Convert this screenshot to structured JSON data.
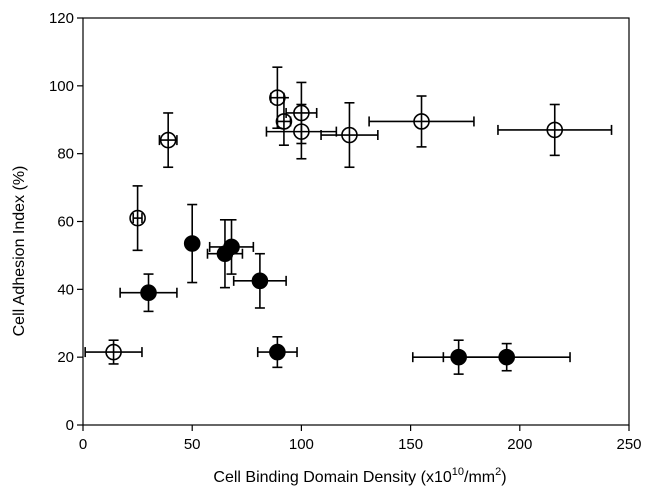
{
  "chart_data": {
    "type": "scatter",
    "title": "",
    "xlabel": "Cell Binding Domain Density (x10",
    "xlabel_sup": "10",
    "xlabel_suffix": "/mm",
    "xlabel_sup2": "2",
    "xlabel_end": ")",
    "ylabel": "Cell Adhesion Index (%)",
    "xlim": [
      0,
      250
    ],
    "ylim": [
      0,
      120
    ],
    "xticks": [
      0,
      50,
      100,
      150,
      200,
      250
    ],
    "yticks": [
      0,
      20,
      40,
      60,
      80,
      100,
      120
    ],
    "grid": false,
    "legend": "none",
    "series": [
      {
        "marker": "open-circle",
        "color": "#000000",
        "points": [
          {
            "x": 14,
            "y": 21.5,
            "xerr": 13,
            "yerr": 3.5
          },
          {
            "x": 25,
            "y": 61,
            "xerr": 2,
            "yerr": 9.5
          },
          {
            "x": 39,
            "y": 84,
            "xerr": 4,
            "yerr": 8
          },
          {
            "x": 89,
            "y": 96.5,
            "xerr": 3,
            "yerr": 9
          },
          {
            "x": 92,
            "y": 89.5,
            "xerr": 3,
            "yerr": 7
          },
          {
            "x": 100,
            "y": 92,
            "xerr": 7,
            "yerr": 9
          },
          {
            "x": 100,
            "y": 86.5,
            "xerr": 16,
            "yerr": 8
          },
          {
            "x": 122,
            "y": 85.5,
            "xerr": 13,
            "yerr": 9.5
          },
          {
            "x": 155,
            "y": 89.5,
            "xerr": 24,
            "yerr": 7.5
          },
          {
            "x": 216,
            "y": 87,
            "xerr": 26,
            "yerr": 7.5
          }
        ]
      },
      {
        "marker": "filled-circle",
        "color": "#000000",
        "points": [
          {
            "x": 30,
            "y": 39,
            "xerr": 13,
            "yerr": 5.5
          },
          {
            "x": 50,
            "y": 53.5,
            "xerr": 0,
            "yerr": 11.5
          },
          {
            "x": 65,
            "y": 50.5,
            "xerr": 8,
            "yerr": 10
          },
          {
            "x": 68,
            "y": 52.5,
            "xerr": 10,
            "yerr": 8
          },
          {
            "x": 81,
            "y": 42.5,
            "xerr": 12,
            "yerr": 8
          },
          {
            "x": 89,
            "y": 21.5,
            "xerr": 9,
            "yerr": 4.5
          },
          {
            "x": 172,
            "y": 20,
            "xerr": 21,
            "yerr": 5
          },
          {
            "x": 194,
            "y": 20,
            "xerr": 29,
            "yerr": 4
          }
        ]
      }
    ]
  }
}
